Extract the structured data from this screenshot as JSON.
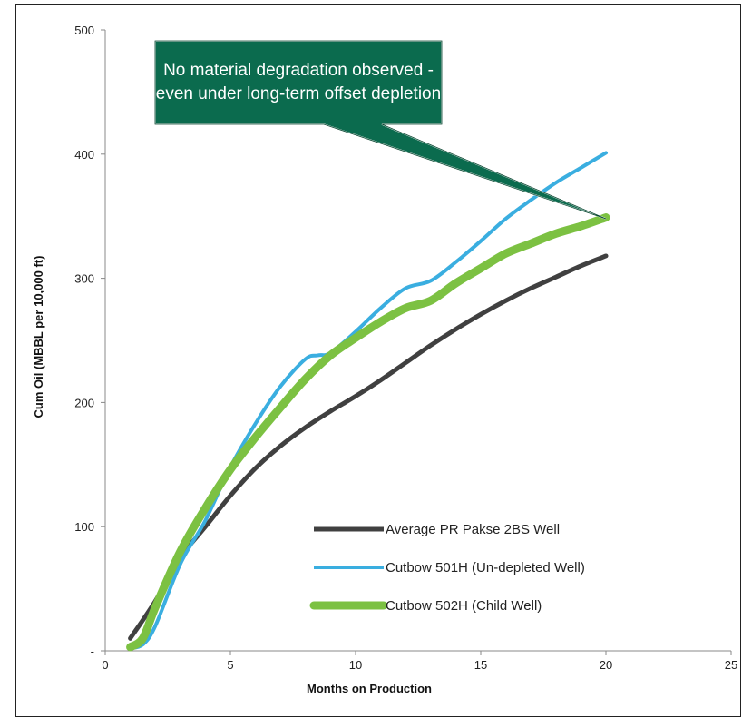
{
  "chart_data": {
    "type": "line",
    "title": "",
    "xlabel": "Months on Production",
    "ylabel": "Cum Oil (MBBL per 10,000 ft)",
    "xlim": [
      0,
      25
    ],
    "ylim": [
      0,
      500
    ],
    "x_ticks": [
      "0",
      "5",
      "10",
      "15",
      "20",
      "25"
    ],
    "y_ticks": [
      "-",
      "100",
      "200",
      "300",
      "400",
      "500"
    ],
    "grid": false,
    "legend_position": "bottom-right",
    "annotation": {
      "lines": [
        "No material degradation observed -",
        "even under long-term offset depletion"
      ],
      "fill_color": "#0b6b4e",
      "pointer_to": [
        20,
        348
      ]
    },
    "series": [
      {
        "name": "Average PR Pakse 2BS Well",
        "color": "#404040",
        "x": [
          1,
          2,
          3,
          4,
          5,
          6,
          7,
          8,
          9,
          10,
          11,
          12,
          13,
          14,
          15,
          16,
          17,
          18,
          19,
          20
        ],
        "y": [
          10,
          40,
          75,
          100,
          125,
          147,
          165,
          180,
          193,
          205,
          218,
          232,
          246,
          259,
          271,
          282,
          292,
          301,
          310,
          318
        ]
      },
      {
        "name": "Cutbow 501H (Un-depleted Well)",
        "color": "#3aaee0",
        "x": [
          1,
          1.5,
          2,
          3,
          4,
          5,
          6,
          7,
          8,
          8.5,
          9,
          10,
          11,
          12,
          13,
          14,
          15,
          16,
          17,
          18,
          19,
          20
        ],
        "y": [
          2,
          5,
          20,
          70,
          105,
          148,
          183,
          213,
          235,
          238,
          240,
          257,
          276,
          292,
          298,
          313,
          330,
          348,
          363,
          377,
          389,
          401
        ]
      },
      {
        "name": "Cutbow 502H (Child Well)",
        "color": "#7cc142",
        "x": [
          1,
          1.5,
          2,
          3,
          4,
          5,
          6,
          7,
          8,
          9,
          10,
          11,
          12,
          13,
          14,
          15,
          16,
          17,
          18,
          19,
          20
        ],
        "y": [
          3,
          10,
          35,
          80,
          115,
          146,
          172,
          196,
          219,
          238,
          252,
          265,
          276,
          282,
          296,
          308,
          320,
          328,
          336,
          342,
          349
        ]
      }
    ]
  }
}
